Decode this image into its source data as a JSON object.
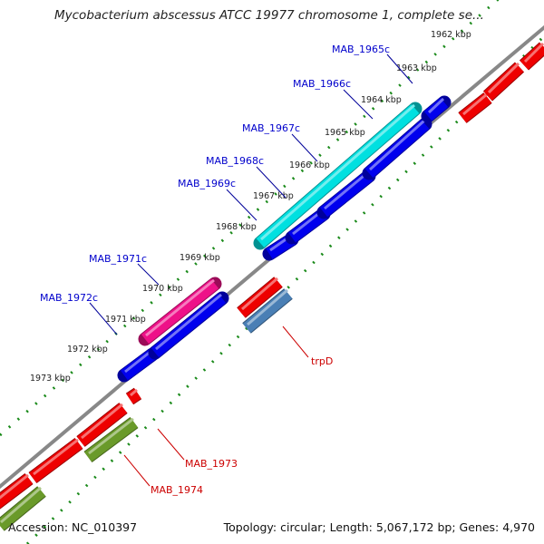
{
  "header": {
    "title": "Mycobacterium abscessus ATCC 19977 chromosome 1, complete se..."
  },
  "footer": {
    "accession": "Accession: NC_010397",
    "summary": "Topology: circular; Length: 5,067,172 bp; Genes: 4,970"
  },
  "colors": {
    "label_blue": "#0000cc",
    "label_red": "#cc0000",
    "backbone": "#888888",
    "tick_green": "#1a8a1a",
    "gene_blue": "#0000ee",
    "gene_cyan": "#00e0e0",
    "gene_pink": "#ee1188",
    "gene_red": "#ee0000",
    "gene_steel": "#4a7fb5",
    "gene_olive": "#6a9a2a"
  },
  "ticks": [
    "1962 kbp",
    "1963 kbp",
    "1964 kbp",
    "1965 kbp",
    "1966 kbp",
    "1967 kbp",
    "1968 kbp",
    "1969 kbp",
    "1970 kbp",
    "1971 kbp",
    "1972 kbp",
    "1973 kbp"
  ],
  "top_labels": [
    "MAB_1965c",
    "MAB_1966c",
    "MAB_1967c",
    "MAB_1968c",
    "MAB_1969c",
    "MAB_1971c",
    "MAB_1972c"
  ],
  "bottom_labels": [
    "trpD",
    "MAB_1973",
    "MAB_1974"
  ]
}
